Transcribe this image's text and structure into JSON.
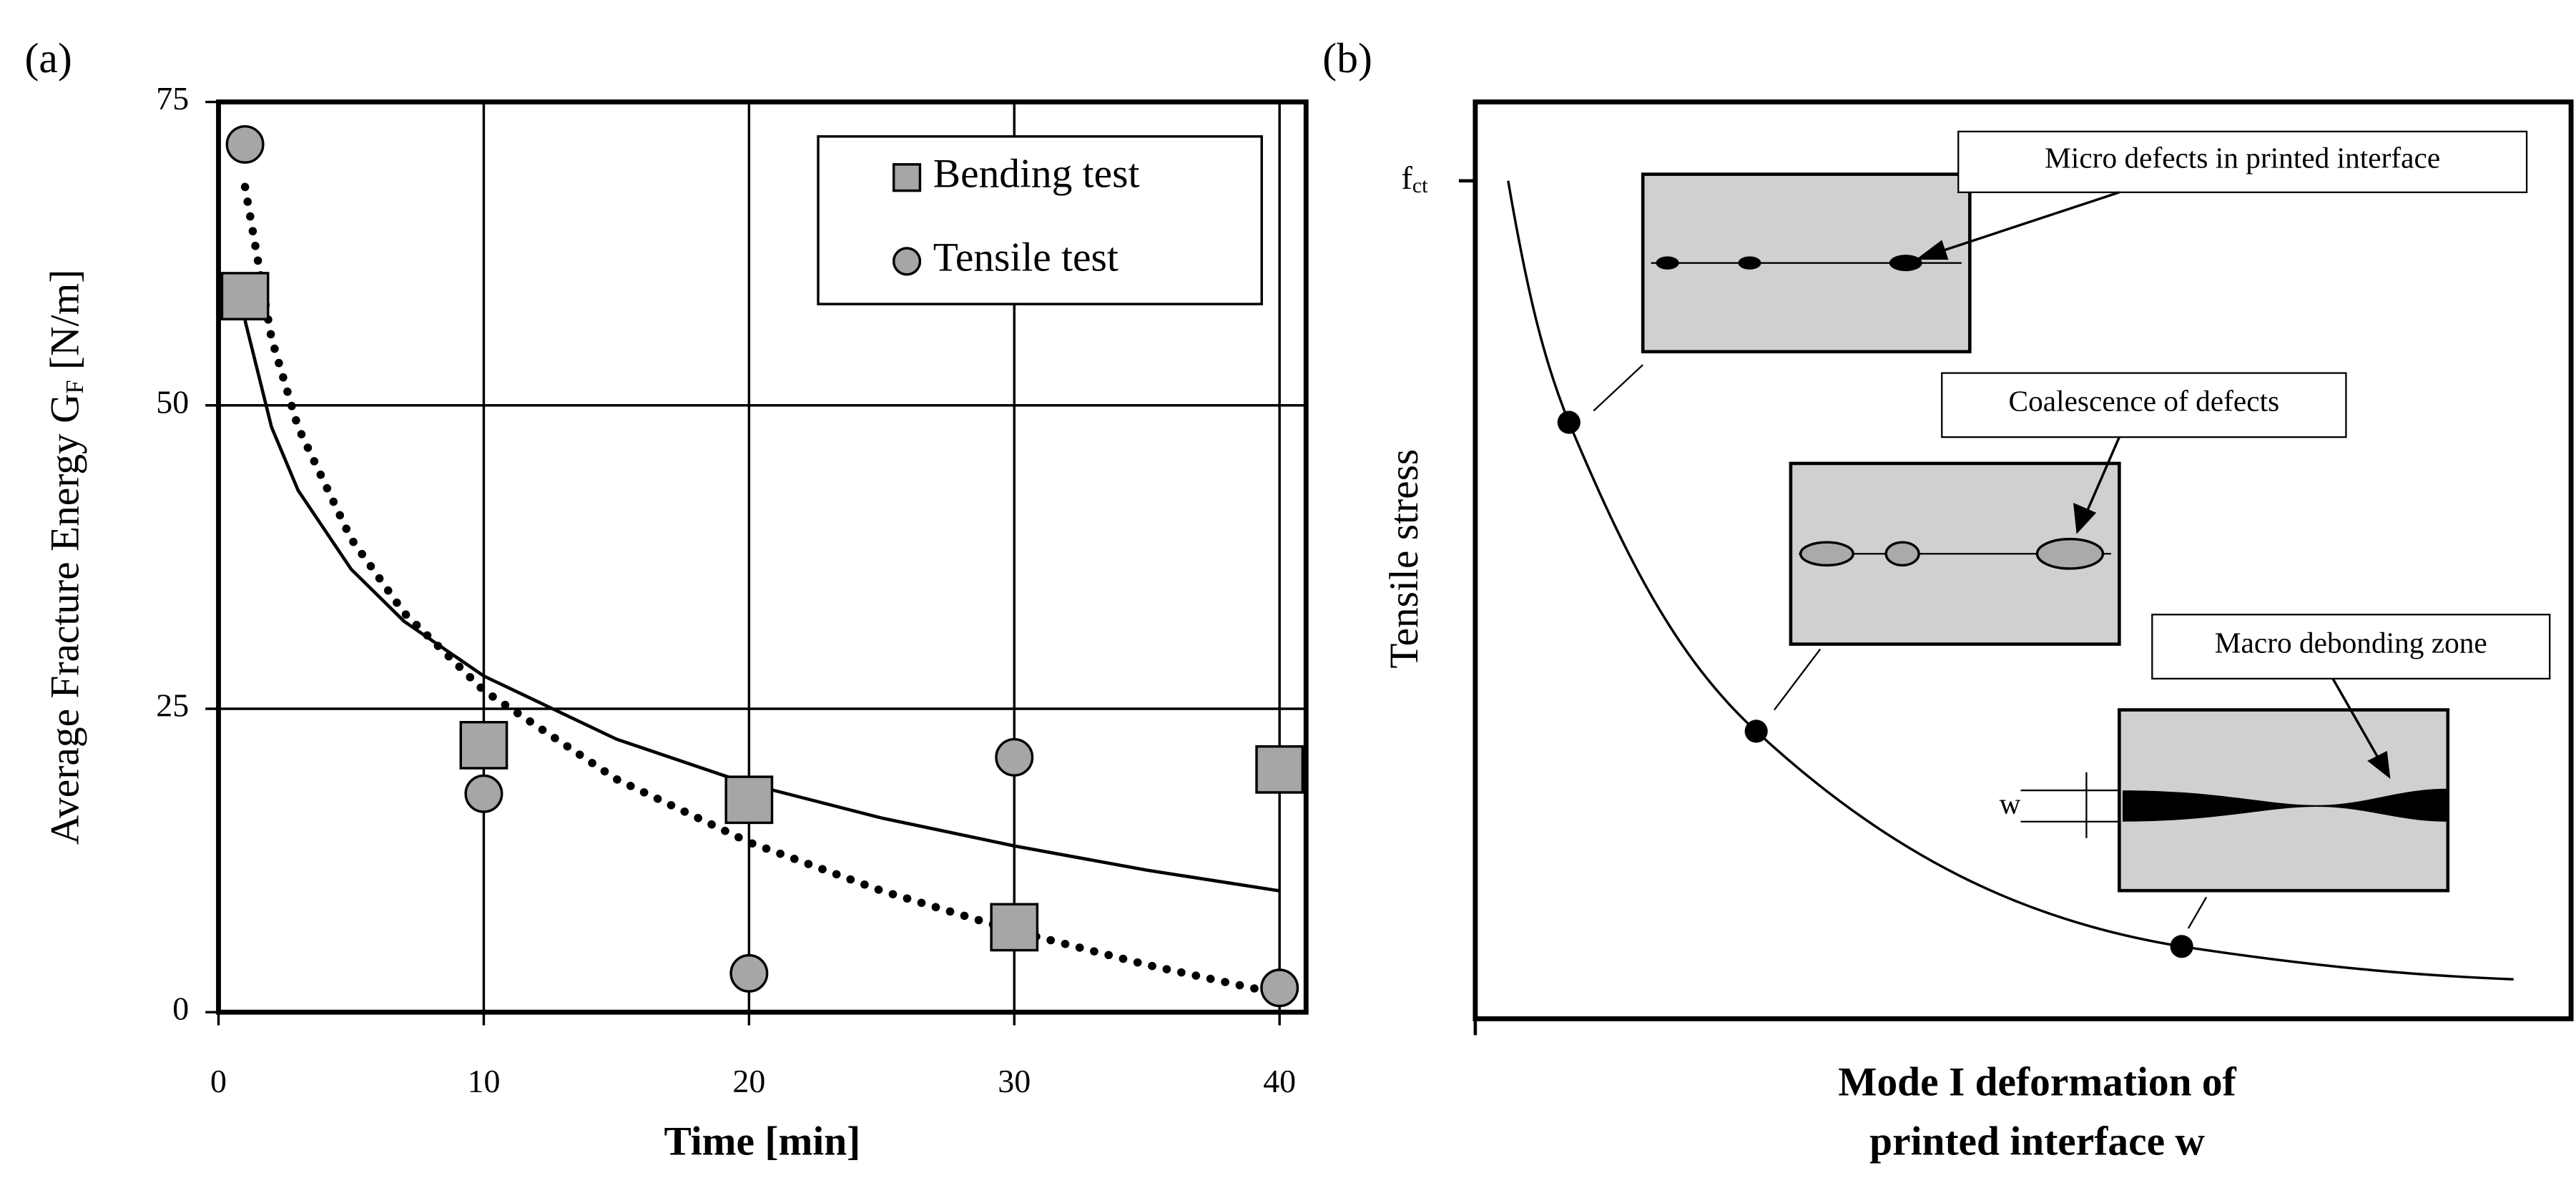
{
  "chart_data": [
    {
      "type": "scatter",
      "panel_label": "(a)",
      "xlabel": "Time [min]",
      "ylabel": {
        "main": "Average Fracture Energy  G",
        "subscript": "F",
        "after": "  [N/m]"
      },
      "xlim": [
        0,
        41
      ],
      "ylim": [
        0,
        75
      ],
      "xticks": [
        0,
        10,
        20,
        30,
        40
      ],
      "yticks": [
        0,
        25,
        50,
        75
      ],
      "grid": true,
      "legend": "upper right",
      "series": [
        {
          "name": "Bending test",
          "marker": "square",
          "color": "#a6a6a6",
          "x": [
            1,
            10,
            20,
            30,
            40
          ],
          "values": [
            59,
            22,
            17.5,
            7,
            20
          ]
        },
        {
          "name": "Tensile test",
          "marker": "circle",
          "color": "#a6a6a6",
          "x": [
            1,
            10,
            20,
            30,
            40
          ],
          "values": [
            71.5,
            18,
            3.2,
            21,
            2
          ]
        }
      ],
      "fits": [
        {
          "style": "solid",
          "color": "#000000",
          "x": [
            1,
            2,
            3,
            5,
            7,
            10,
            15,
            20,
            25,
            30,
            35,
            40
          ],
          "values": [
            57,
            48.2,
            43,
            36.5,
            32.2,
            27.7,
            22.5,
            18.8,
            16,
            13.7,
            11.7,
            10
          ]
        },
        {
          "style": "dotted",
          "color": "#000000",
          "x": [
            1,
            2,
            3,
            5,
            7,
            10,
            15,
            20,
            25,
            30,
            35,
            40
          ],
          "values": [
            68,
            55.5,
            48.2,
            39,
            32.9,
            26.5,
            19.2,
            14,
            10,
            6.7,
            3.9,
            1.5
          ]
        }
      ]
    }
  ],
  "diagram": {
    "panel_label": "(b)",
    "ylabel": "Tensile stress",
    "xlabel": [
      "Mode I deformation of",
      "printed interface w"
    ],
    "ytick": {
      "main": "f",
      "subscript": "ct"
    },
    "callouts": [
      "Micro defects in printed interface",
      "Coalescence of defects",
      "Macro debonding zone"
    ],
    "width_label": "w"
  }
}
